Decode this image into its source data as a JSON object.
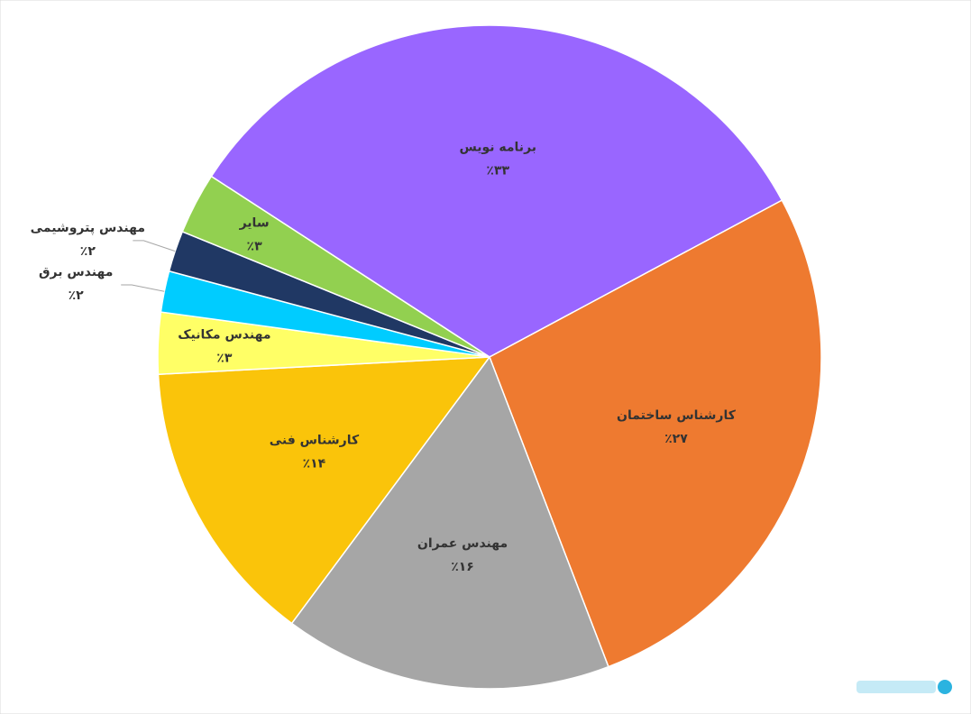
{
  "chart_data": {
    "type": "pie",
    "categories": [
      "برنامه نویس",
      "کارشناس ساختمان",
      "مهندس عمران",
      "کارشناس فنی",
      "مهندس مکانیک",
      "مهندس برق",
      "مهندس پتروشیمی",
      "سایر"
    ],
    "values": [
      33,
      27,
      16,
      14,
      3,
      2,
      2,
      3
    ],
    "value_labels": [
      "٪۳۳",
      "٪۲۷",
      "٪۱۶",
      "٪۱۴",
      "٪۳",
      "٪۲",
      "٪۲",
      "٪۳"
    ],
    "colors": [
      "#9966ff",
      "#ee7a30",
      "#a6a6a6",
      "#fac40a",
      "#ffff66",
      "#00ccff",
      "#203864",
      "#92d050"
    ]
  }
}
